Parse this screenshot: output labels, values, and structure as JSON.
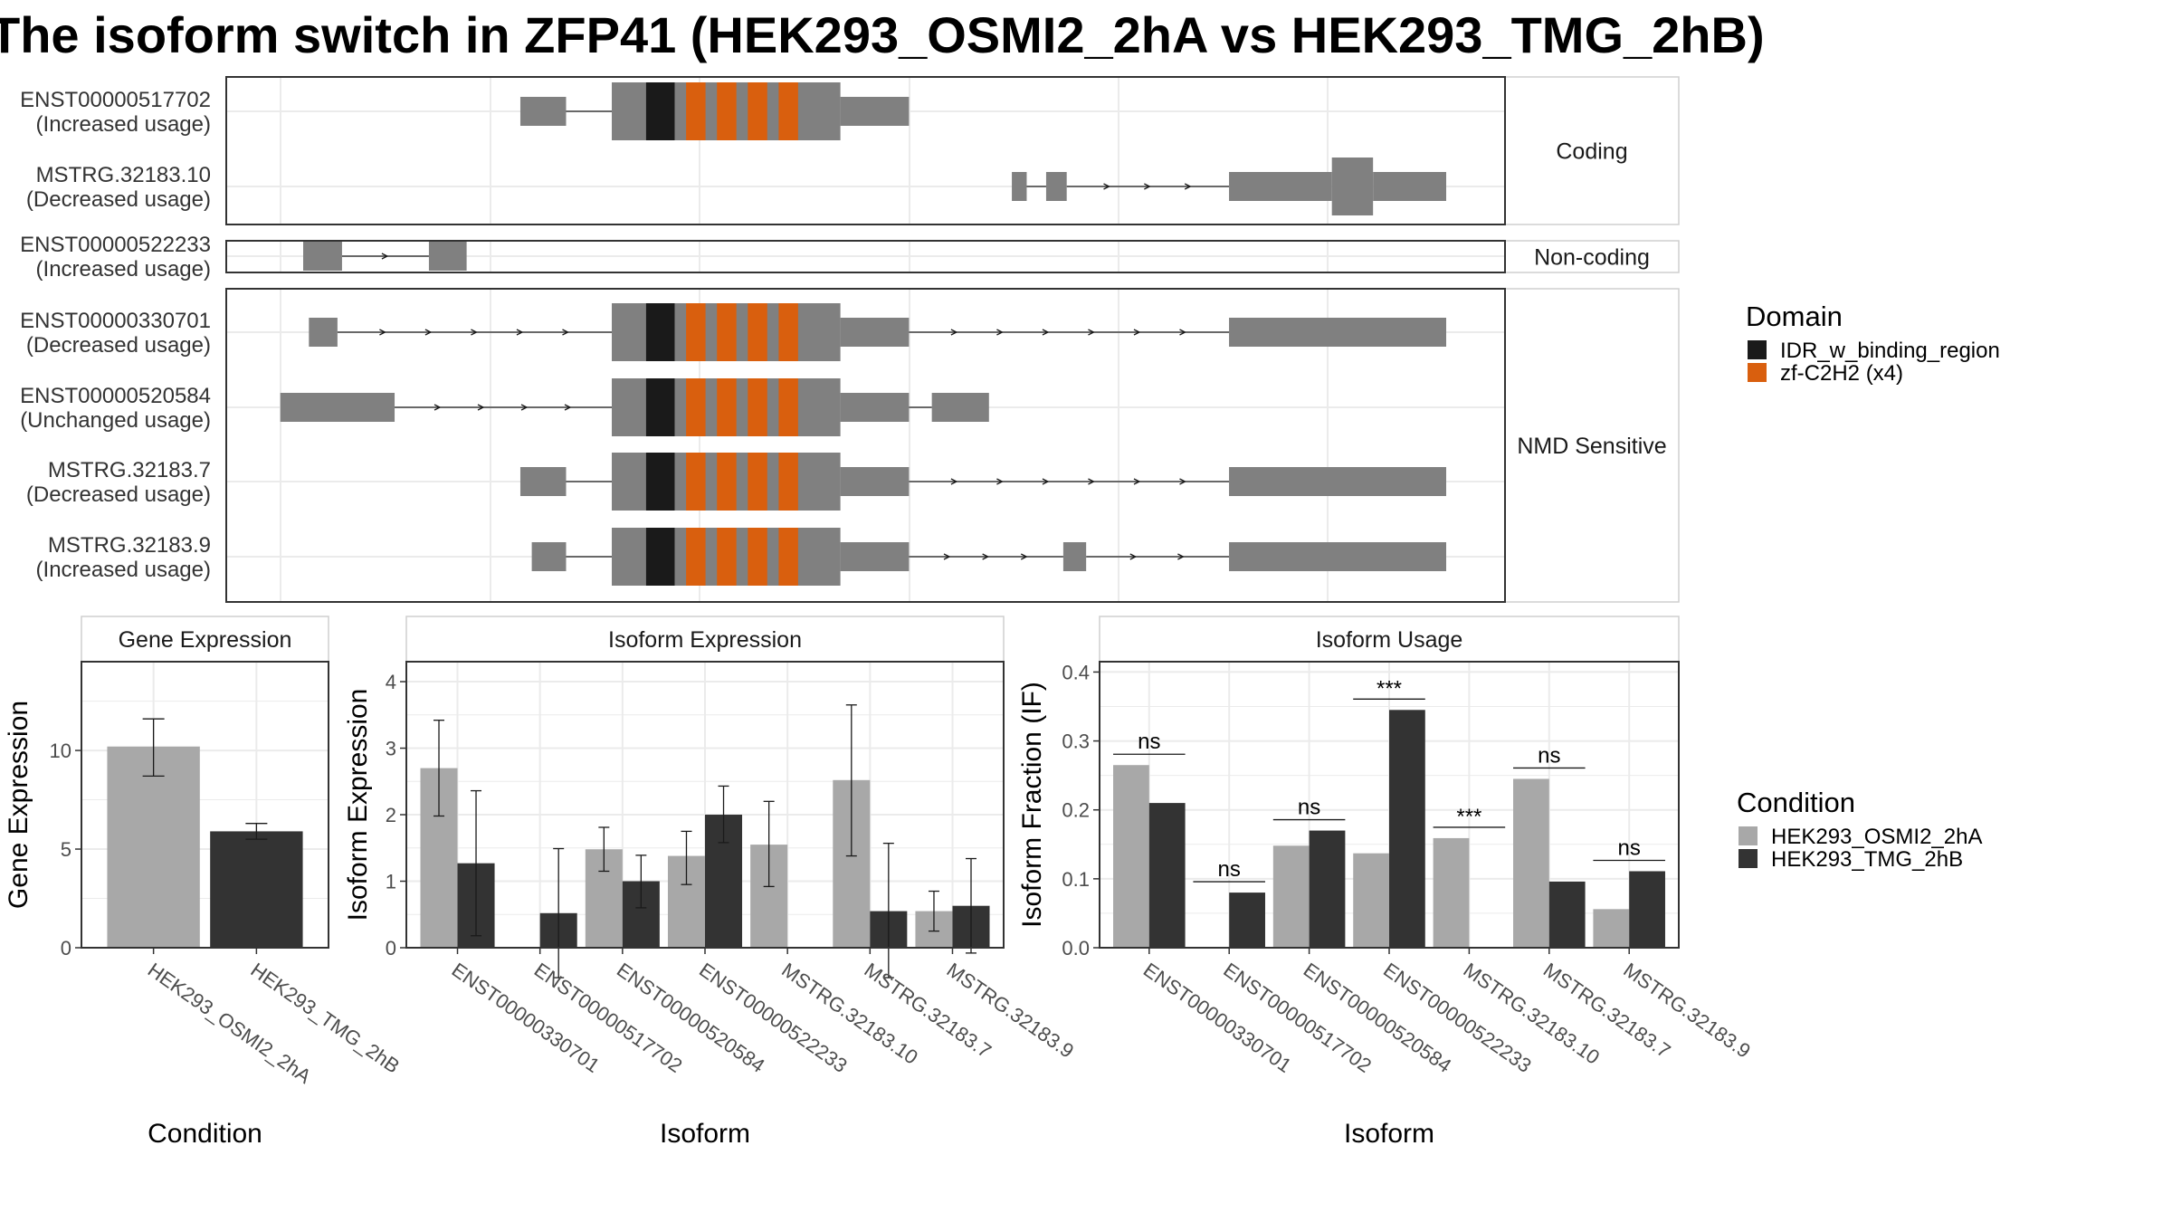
{
  "title": "The isoform switch in ZFP41 (HEK293_OSMI2_2hA vs HEK293_TMG_2hB)",
  "colors": {
    "exon": "#808080",
    "idr": "#1a1a1a",
    "zf": "#d95f0e",
    "condA": "#a8a8a8",
    "condB": "#333333"
  },
  "structure": {
    "facets": [
      {
        "label": "Coding",
        "transcripts": [
          {
            "id": "ENST00000517702",
            "usage": "(Increased usage)",
            "exons": [
              [
                0.19,
                0.23,
                "utr"
              ],
              [
                0.27,
                0.47,
                "cds"
              ],
              [
                0.47,
                0.53,
                "utr"
              ]
            ],
            "domains": [
              [
                "idr",
                0.3,
                0.325
              ],
              [
                "zf",
                0.335,
                0.352
              ],
              [
                "zf",
                0.362,
                0.379
              ],
              [
                "zf",
                0.389,
                0.406
              ],
              [
                "zf",
                0.416,
                0.433
              ]
            ]
          },
          {
            "id": "MSTRG.32183.10",
            "usage": "(Decreased usage)",
            "exons": [
              [
                0.62,
                0.633,
                "utr"
              ],
              [
                0.65,
                0.668,
                "utr"
              ],
              [
                0.81,
                0.9,
                "utr"
              ],
              [
                0.9,
                0.936,
                "cds"
              ],
              [
                0.936,
                1.0,
                "utr"
              ]
            ],
            "domains": []
          }
        ]
      },
      {
        "label": "Non-coding",
        "transcripts": [
          {
            "id": "ENST00000522233",
            "usage": "(Increased usage)",
            "exons": [
              [
                0.0,
                0.034,
                "utr"
              ],
              [
                0.11,
                0.143,
                "utr"
              ]
            ],
            "domains": []
          }
        ]
      },
      {
        "label": "NMD Sensitive",
        "transcripts": [
          {
            "id": "ENST00000330701",
            "usage": "(Decreased usage)",
            "exons": [
              [
                0.005,
                0.03,
                "utr"
              ],
              [
                0.27,
                0.47,
                "cds"
              ],
              [
                0.47,
                0.53,
                "utr"
              ],
              [
                0.81,
                1.0,
                "utr"
              ]
            ],
            "domains": [
              [
                "idr",
                0.3,
                0.325
              ],
              [
                "zf",
                0.335,
                0.352
              ],
              [
                "zf",
                0.362,
                0.379
              ],
              [
                "zf",
                0.389,
                0.406
              ],
              [
                "zf",
                0.416,
                0.433
              ]
            ]
          },
          {
            "id": "ENST00000520584",
            "usage": "(Unchanged usage)",
            "exons": [
              [
                -0.02,
                0.08,
                "utr"
              ],
              [
                0.27,
                0.47,
                "cds"
              ],
              [
                0.47,
                0.53,
                "utr"
              ],
              [
                0.55,
                0.6,
                "utr"
              ]
            ],
            "domains": [
              [
                "idr",
                0.3,
                0.325
              ],
              [
                "zf",
                0.335,
                0.352
              ],
              [
                "zf",
                0.362,
                0.379
              ],
              [
                "zf",
                0.389,
                0.406
              ],
              [
                "zf",
                0.416,
                0.433
              ]
            ]
          },
          {
            "id": "MSTRG.32183.7",
            "usage": "(Decreased usage)",
            "exons": [
              [
                0.19,
                0.23,
                "utr"
              ],
              [
                0.27,
                0.47,
                "cds"
              ],
              [
                0.47,
                0.53,
                "utr"
              ],
              [
                0.81,
                1.0,
                "utr"
              ]
            ],
            "domains": [
              [
                "idr",
                0.3,
                0.325
              ],
              [
                "zf",
                0.335,
                0.352
              ],
              [
                "zf",
                0.362,
                0.379
              ],
              [
                "zf",
                0.389,
                0.406
              ],
              [
                "zf",
                0.416,
                0.433
              ]
            ]
          },
          {
            "id": "MSTRG.32183.9",
            "usage": "(Increased usage)",
            "exons": [
              [
                0.2,
                0.23,
                "utr"
              ],
              [
                0.27,
                0.47,
                "cds"
              ],
              [
                0.47,
                0.53,
                "utr"
              ],
              [
                0.665,
                0.685,
                "utr"
              ],
              [
                0.81,
                1.0,
                "utr"
              ]
            ],
            "domains": [
              [
                "idr",
                0.3,
                0.325
              ],
              [
                "zf",
                0.335,
                0.352
              ],
              [
                "zf",
                0.362,
                0.379
              ],
              [
                "zf",
                0.389,
                0.406
              ],
              [
                "zf",
                0.416,
                0.433
              ]
            ]
          }
        ]
      }
    ]
  },
  "legends": {
    "domain": {
      "title": "Domain",
      "items": [
        {
          "label": "IDR_w_binding_region",
          "color": "#1a1a1a"
        },
        {
          "label": "zf-C2H2 (x4)",
          "color": "#d95f0e"
        }
      ]
    },
    "condition": {
      "title": "Condition",
      "items": [
        {
          "label": "HEK293_OSMI2_2hA",
          "color": "#a8a8a8"
        },
        {
          "label": "HEK293_TMG_2hB",
          "color": "#333333"
        }
      ]
    }
  },
  "chart_data": [
    {
      "type": "bar",
      "title": "Gene Expression",
      "xlabel": "Condition",
      "ylabel": "Gene Expression",
      "ylim": [
        0,
        14.5
      ],
      "yticks": [
        0,
        5,
        10
      ],
      "categories": [
        "HEK293_OSMI2_2hA",
        "HEK293_TMG_2hB"
      ],
      "values": [
        10.2,
        5.9
      ],
      "errors": [
        [
          8.7,
          11.6
        ],
        [
          5.5,
          6.3
        ]
      ]
    },
    {
      "type": "bar",
      "title": "Isoform Expression",
      "xlabel": "Isoform",
      "ylabel": "Isoform Expression",
      "ylim": [
        0,
        4.3
      ],
      "yticks": [
        0,
        1,
        2,
        3,
        4
      ],
      "categories": [
        "ENST00000330701",
        "ENST00000517702",
        "ENST00000520584",
        "ENST00000522233",
        "MSTRG.32183.10",
        "MSTRG.32183.7",
        "MSTRG.32183.9"
      ],
      "series": [
        {
          "name": "HEK293_OSMI2_2hA",
          "values": [
            2.7,
            0.0,
            1.48,
            1.38,
            1.55,
            2.52,
            0.55
          ],
          "errors": [
            [
              1.98,
              3.42
            ],
            [
              0.0,
              0.0
            ],
            [
              1.15,
              1.81
            ],
            [
              0.95,
              1.75
            ],
            [
              0.92,
              2.2
            ],
            [
              1.38,
              3.65
            ],
            [
              0.25,
              0.85
            ]
          ]
        },
        {
          "name": "HEK293_TMG_2hB",
          "values": [
            1.27,
            0.52,
            1.0,
            2.0,
            0.0,
            0.55,
            0.63
          ],
          "errors": [
            [
              0.18,
              2.36
            ],
            [
              -0.45,
              1.49
            ],
            [
              0.6,
              1.39
            ],
            [
              1.58,
              2.43
            ],
            [
              0.0,
              0.0
            ],
            [
              -0.45,
              1.57
            ],
            [
              -0.08,
              1.34
            ]
          ]
        }
      ]
    },
    {
      "type": "bar",
      "title": "Isoform Usage",
      "xlabel": "Isoform",
      "ylabel": "Isoform Fraction (IF)",
      "ylim": [
        0,
        0.415
      ],
      "yticks": [
        0.0,
        0.1,
        0.2,
        0.3,
        0.4
      ],
      "categories": [
        "ENST00000330701",
        "ENST00000517702",
        "ENST00000520584",
        "ENST00000522233",
        "MSTRG.32183.10",
        "MSTRG.32183.7",
        "MSTRG.32183.9"
      ],
      "series": [
        {
          "name": "HEK293_OSMI2_2hA",
          "values": [
            0.265,
            0.0,
            0.148,
            0.137,
            0.159,
            0.245,
            0.056
          ]
        },
        {
          "name": "HEK293_TMG_2hB",
          "values": [
            0.21,
            0.08,
            0.17,
            0.345,
            0.0,
            0.096,
            0.111
          ]
        }
      ],
      "significance": [
        "ns",
        "ns",
        "ns",
        "***",
        "***",
        "ns",
        "ns"
      ]
    }
  ]
}
